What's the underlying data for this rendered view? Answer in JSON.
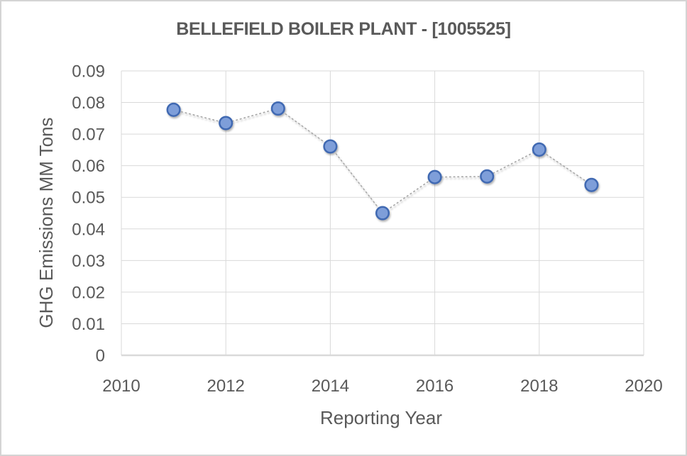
{
  "window": {
    "background": "#FFFFFF",
    "frame_color": "#D4D4D4"
  },
  "chart_data": {
    "type": "line",
    "title": "BELLEFIELD BOILER PLANT - [1005525]",
    "xlabel": "Reporting Year",
    "ylabel": "GHG Emissions MM Tons",
    "x": [
      2011,
      2012,
      2013,
      2014,
      2015,
      2016,
      2017,
      2018,
      2019
    ],
    "values": [
      0.0777,
      0.0735,
      0.0781,
      0.0661,
      0.045,
      0.0564,
      0.0566,
      0.0651,
      0.0539
    ],
    "xlim": [
      2010,
      2020
    ],
    "ylim": [
      0,
      0.09
    ],
    "xticks": [
      2010,
      2012,
      2014,
      2016,
      2018,
      2020
    ],
    "xtick_labels": [
      "2010",
      "2012",
      "2014",
      "2016",
      "2018",
      "2020"
    ],
    "yticks": [
      0,
      0.01,
      0.02,
      0.03,
      0.04,
      0.05,
      0.06,
      0.07,
      0.08,
      0.09
    ],
    "ytick_labels": [
      "0",
      "0.01",
      "0.02",
      "0.03",
      "0.04",
      "0.05",
      "0.06",
      "0.07",
      "0.08",
      "0.09"
    ],
    "grid": true,
    "legend": false,
    "style": {
      "marker_fill": "#7E9ED9",
      "marker_stroke": "#4169B2",
      "line_color": "#A6A6A6",
      "line_style": "dotted",
      "grid_color": "#D9D9D9",
      "axis_line_color": "#D9D9D9",
      "text_color": "#595959",
      "title_color": "#595959"
    }
  }
}
